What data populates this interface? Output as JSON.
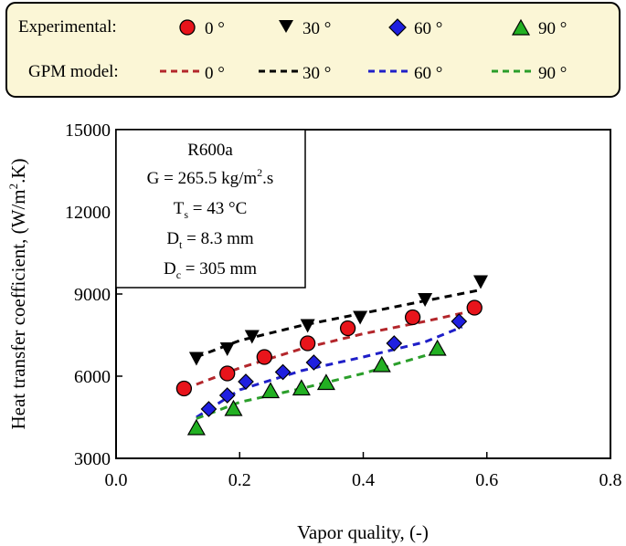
{
  "legend": {
    "experimental_label": "Experimental:",
    "model_label": "GPM model:",
    "entries": [
      "0 °",
      "30 °",
      "60 °",
      "90 °"
    ]
  },
  "annotation": {
    "fluid": "R600a",
    "mass_flux": {
      "prefix": "G = 265.5 kg/m",
      "sup": "2",
      "suffix": ".s"
    },
    "saturation_temp": {
      "main": "T",
      "sub": "s",
      "suffix": " = 43 °C"
    },
    "tube_diameter": {
      "main": "D",
      "sub": "t",
      "suffix": " = 8.3 mm"
    },
    "coil_diameter": {
      "main": "D",
      "sub": "c",
      "suffix": " = 305 mm"
    }
  },
  "chart_data": {
    "type": "scatter",
    "title": "",
    "xlabel": "Vapor quality, (-)",
    "ylabel": {
      "prefix": "Heat transfer coefficient, (W/m",
      "sup": "2",
      "suffix": ".K)"
    },
    "xlim": [
      0.0,
      0.8
    ],
    "ylim": [
      3000,
      15000
    ],
    "xticks": [
      0.0,
      0.2,
      0.4,
      0.6,
      0.8
    ],
    "xtick_labels": [
      "0.0",
      "0.2",
      "0.4",
      "0.6",
      "0.8"
    ],
    "yticks": [
      3000,
      6000,
      9000,
      12000,
      15000
    ],
    "ytick_labels": [
      "3000",
      "6000",
      "9000",
      "12000",
      "15000"
    ],
    "grid": false,
    "legend_position": "top",
    "series": [
      {
        "name": "0 °",
        "group": "Experimental",
        "marker": "circle",
        "color": "#e8141b",
        "x": [
          0.11,
          0.18,
          0.24,
          0.31,
          0.375,
          0.48,
          0.58
        ],
        "y": [
          5550,
          6100,
          6700,
          7200,
          7750,
          8150,
          8500
        ]
      },
      {
        "name": "30 °",
        "group": "Experimental",
        "marker": "triangle-down",
        "color": "#000000",
        "x": [
          0.13,
          0.18,
          0.22,
          0.31,
          0.395,
          0.5,
          0.59
        ],
        "y": [
          6650,
          7000,
          7450,
          7850,
          8150,
          8800,
          9450
        ]
      },
      {
        "name": "60 °",
        "group": "Experimental",
        "marker": "diamond",
        "color": "#1f1fe0",
        "x": [
          0.15,
          0.18,
          0.21,
          0.27,
          0.32,
          0.45,
          0.555
        ],
        "y": [
          4800,
          5300,
          5800,
          6150,
          6500,
          7200,
          8000
        ]
      },
      {
        "name": "90 °",
        "group": "Experimental",
        "marker": "triangle-up",
        "color": "#22b022",
        "x": [
          0.13,
          0.19,
          0.25,
          0.3,
          0.34,
          0.43,
          0.52
        ],
        "y": [
          4100,
          4800,
          5450,
          5550,
          5750,
          6400,
          7000
        ]
      },
      {
        "name": "0 °",
        "group": "GPM model",
        "marker": "dashed-line",
        "color": "#b3262b",
        "x": [
          0.13,
          0.2,
          0.3,
          0.4,
          0.5,
          0.58
        ],
        "y": [
          5700,
          6300,
          7000,
          7550,
          8000,
          8400
        ]
      },
      {
        "name": "30 °",
        "group": "GPM model",
        "marker": "dashed-line",
        "color": "#000000",
        "x": [
          0.13,
          0.2,
          0.3,
          0.4,
          0.5,
          0.59
        ],
        "y": [
          6700,
          7300,
          7850,
          8300,
          8750,
          9150
        ]
      },
      {
        "name": "60 °",
        "group": "GPM model",
        "marker": "dashed-line",
        "color": "#1f1fc8",
        "x": [
          0.13,
          0.2,
          0.3,
          0.4,
          0.5,
          0.56
        ],
        "y": [
          4500,
          5500,
          6200,
          6700,
          7250,
          7800
        ]
      },
      {
        "name": "90 °",
        "group": "GPM model",
        "marker": "dashed-line",
        "color": "#2a9e2a",
        "x": [
          0.13,
          0.2,
          0.3,
          0.4,
          0.5,
          0.52
        ],
        "y": [
          4450,
          5050,
          5550,
          6100,
          6750,
          6950
        ]
      }
    ]
  }
}
